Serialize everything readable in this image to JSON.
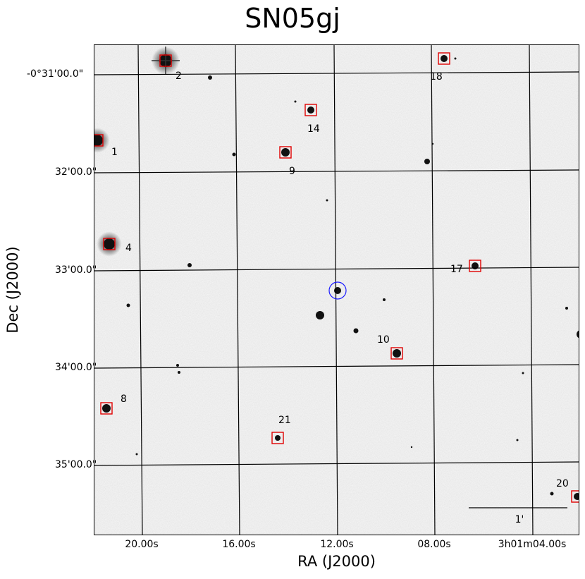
{
  "title": "SN05gj",
  "axes": {
    "xlabel": "RA (J2000)",
    "ylabel": "Dec (J2000)",
    "xticks": [
      "20.00s",
      "16.00s",
      "12.00s",
      "08.00s",
      "3h01m04.00s"
    ],
    "yticks": [
      "-0°31'00.0\"",
      "32'00.0\"",
      "33'00.0\"",
      "34'00.0\"",
      "35'00.0\""
    ]
  },
  "supernova": {
    "name": "SN05gj",
    "marker": "blue-circle"
  },
  "reference_stars": [
    {
      "label": "1"
    },
    {
      "label": "2"
    },
    {
      "label": "4"
    },
    {
      "label": "8"
    },
    {
      "label": "9"
    },
    {
      "label": "10"
    },
    {
      "label": "14"
    },
    {
      "label": "17"
    },
    {
      "label": "18"
    },
    {
      "label": "20"
    },
    {
      "label": "21"
    }
  ],
  "scale_bar": {
    "label": "1'"
  },
  "colors": {
    "marker_box": "#e00000",
    "sn_circle": "#1a1aff",
    "sky": "#d9d9d9",
    "grid": "#000000"
  }
}
